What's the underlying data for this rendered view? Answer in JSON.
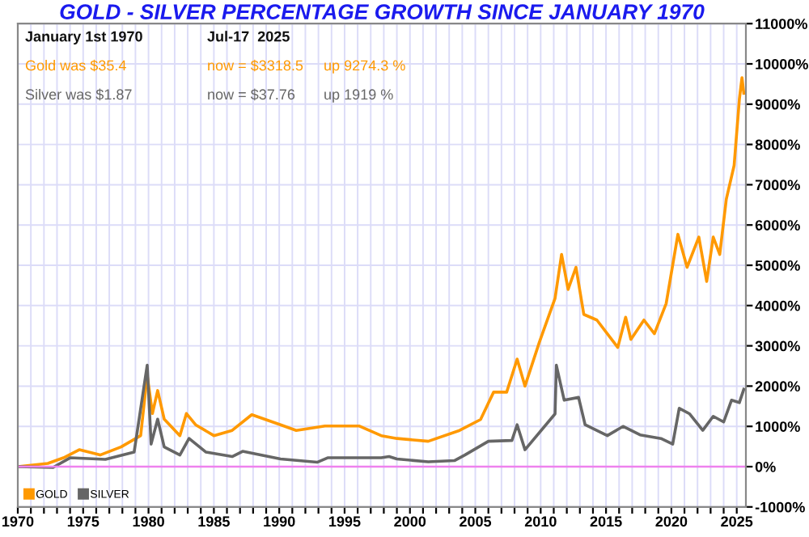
{
  "chart_data": {
    "type": "line",
    "title": "GOLD - SILVER PERCENTAGE GROWTH SINCE JANUARY 1970",
    "annotations": [
      "January 1st 1970",
      "Jul-17  2025",
      "Gold was $35.4",
      "now = $3318.5",
      "up 9274.3 %",
      "Silver was $1.87",
      "now = $37.76",
      "up 1919 %"
    ],
    "series": [
      {
        "name": "GOLD",
        "color": "#ff9900",
        "x": [
          1970,
          1972.3,
          1973.5,
          1974.7,
          1976.3,
          1977.9,
          1979.4,
          1979.9,
          1980.3,
          1980.7,
          1981.2,
          1982.4,
          1982.9,
          1983.6,
          1985.0,
          1986.4,
          1987.9,
          1990.1,
          1991.3,
          1993.5,
          1996.1,
          1997.8,
          1999.0,
          2001.4,
          2003.8,
          2005.4,
          2006.4,
          2007.4,
          2008.2,
          2008.8,
          2009.9,
          2011.1,
          2011.6,
          2012.1,
          2012.7,
          2013.3,
          2014.3,
          2015.9,
          2016.5,
          2016.9,
          2017.9,
          2018.7,
          2019.6,
          2020.5,
          2021.2,
          2022.1,
          2022.7,
          2023.2,
          2023.7,
          2024.2,
          2024.8,
          2025.2,
          2025.4,
          2025.54
        ],
        "values": [
          0,
          80,
          220,
          420,
          290,
          490,
          770,
          2270,
          1320,
          1890,
          1180,
          770,
          1320,
          1040,
          770,
          900,
          1290,
          1040,
          900,
          1010,
          1010,
          770,
          700,
          630,
          900,
          1170,
          1850,
          1850,
          2670,
          2000,
          3090,
          4180,
          5270,
          4400,
          4950,
          3780,
          3640,
          2960,
          3710,
          3160,
          3640,
          3300,
          4050,
          5770,
          4950,
          5700,
          4600,
          5700,
          5270,
          6640,
          7480,
          9120,
          9660,
          9270
        ]
      },
      {
        "name": "SILVER",
        "color": "#666666",
        "x": [
          1970,
          1972.7,
          1974.0,
          1976.7,
          1978.9,
          1979.9,
          1980.2,
          1980.7,
          1981.2,
          1982.4,
          1983.1,
          1984.4,
          1986.4,
          1987.2,
          1990.1,
          1992.9,
          1993.7,
          1997.8,
          1998.4,
          1999.0,
          2001.4,
          2003.4,
          2004.2,
          2006.0,
          2007.8,
          2008.2,
          2008.8,
          2011.1,
          2011.2,
          2011.8,
          2012.9,
          2013.4,
          2015.1,
          2016.3,
          2017.6,
          2019.2,
          2020.1,
          2020.6,
          2021.4,
          2022.4,
          2023.2,
          2024.0,
          2024.6,
          2025.2,
          2025.54
        ],
        "values": [
          0,
          -20,
          220,
          180,
          360,
          2520,
          560,
          1180,
          490,
          290,
          700,
          360,
          250,
          380,
          190,
          110,
          220,
          220,
          250,
          190,
          120,
          150,
          290,
          630,
          650,
          1040,
          420,
          1310,
          2520,
          1650,
          1720,
          1040,
          770,
          1000,
          790,
          700,
          560,
          1450,
          1310,
          900,
          1250,
          1110,
          1650,
          1590,
          1920
        ]
      }
    ],
    "ref_lines": [
      {
        "axis": "y",
        "value": 0,
        "color": "#ee82ee"
      }
    ],
    "xlim": [
      1970,
      2025.7
    ],
    "xticks": [
      1970,
      {
        "value": 1971,
        "label": null
      },
      {
        "value": 1972,
        "label": null
      },
      {
        "value": 1973,
        "label": null
      },
      {
        "value": 1974,
        "label": null
      },
      1975,
      {
        "value": 1976,
        "label": null
      },
      {
        "value": 1977,
        "label": null
      },
      {
        "value": 1978,
        "label": null
      },
      {
        "value": 1979,
        "label": null
      },
      1980,
      {
        "value": 1981,
        "label": null
      },
      {
        "value": 1982,
        "label": null
      },
      {
        "value": 1983,
        "label": null
      },
      {
        "value": 1984,
        "label": null
      },
      1985,
      {
        "value": 1986,
        "label": null
      },
      {
        "value": 1987,
        "label": null
      },
      {
        "value": 1988,
        "label": null
      },
      {
        "value": 1989,
        "label": null
      },
      1990,
      {
        "value": 1991,
        "label": null
      },
      {
        "value": 1992,
        "label": null
      },
      {
        "value": 1993,
        "label": null
      },
      {
        "value": 1994,
        "label": null
      },
      1995,
      {
        "value": 1996,
        "label": null
      },
      {
        "value": 1997,
        "label": null
      },
      {
        "value": 1998,
        "label": null
      },
      {
        "value": 1999,
        "label": null
      },
      2000,
      {
        "value": 2001,
        "label": null
      },
      {
        "value": 2002,
        "label": null
      },
      {
        "value": 2003,
        "label": null
      },
      {
        "value": 2004,
        "label": null
      },
      2005,
      {
        "value": 2006,
        "label": null
      },
      {
        "value": 2007,
        "label": null
      },
      {
        "value": 2008,
        "label": null
      },
      {
        "value": 2009,
        "label": null
      },
      2010,
      {
        "value": 2011,
        "label": null
      },
      {
        "value": 2012,
        "label": null
      },
      {
        "value": 2013,
        "label": null
      },
      {
        "value": 2014,
        "label": null
      },
      2015,
      {
        "value": 2016,
        "label": null
      },
      {
        "value": 2017,
        "label": null
      },
      {
        "value": 2018,
        "label": null
      },
      {
        "value": 2019,
        "label": null
      },
      2020,
      {
        "value": 2021,
        "label": null
      },
      {
        "value": 2022,
        "label": null
      },
      {
        "value": 2023,
        "label": null
      },
      {
        "value": 2024,
        "label": null
      },
      2025
    ],
    "ylim": [
      -1000,
      11000
    ],
    "yticks": [
      {
        "value": -1000,
        "label": "-1000%"
      },
      {
        "value": 0,
        "label": "0%"
      },
      {
        "value": 1000,
        "label": "1000%"
      },
      {
        "value": 2000,
        "label": "2000%"
      },
      {
        "value": 3000,
        "label": "3000%"
      },
      {
        "value": 4000,
        "label": "4000%"
      },
      {
        "value": 5000,
        "label": "5000%"
      },
      {
        "value": 6000,
        "label": "6000%"
      },
      {
        "value": 7000,
        "label": "7000%"
      },
      {
        "value": 8000,
        "label": "8000%"
      },
      {
        "value": 9000,
        "label": "9000%"
      },
      {
        "value": 10000,
        "label": "10000%"
      },
      {
        "value": 11000,
        "label": "11000%"
      }
    ],
    "grid": true,
    "legend": "bottom left",
    "marker": "none",
    "line_style": "solid"
  }
}
